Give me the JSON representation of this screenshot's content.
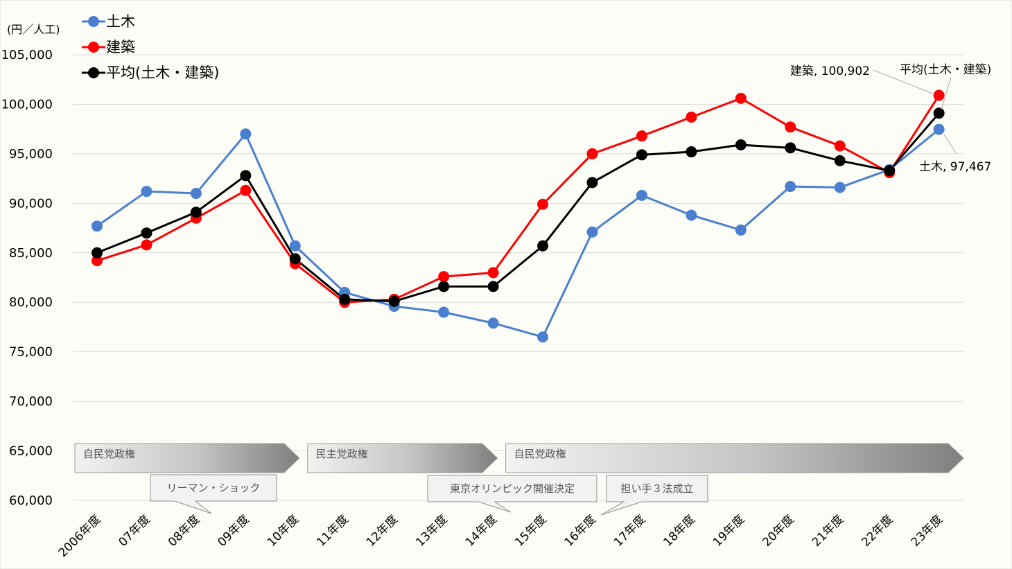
{
  "chart_data": {
    "type": "line",
    "unit_label": "(円／人工)",
    "categories": [
      "2006年度",
      "07年度",
      "08年度",
      "09年度",
      "10年度",
      "11年度",
      "12年度",
      "13年度",
      "14年度",
      "15年度",
      "16年度",
      "17年度",
      "18年度",
      "19年度",
      "20年度",
      "21年度",
      "22年度",
      "23年度"
    ],
    "ylim": [
      60000,
      105000
    ],
    "yticks": [
      60000,
      65000,
      70000,
      75000,
      80000,
      85000,
      90000,
      95000,
      100000,
      105000
    ],
    "ytick_labels": [
      "60,000",
      "65,000",
      "70,000",
      "75,000",
      "80,000",
      "85,000",
      "90,000",
      "95,000",
      "100,000",
      "105,000"
    ],
    "grid": true,
    "legend_position": "top-left",
    "series": [
      {
        "name": "土木",
        "color": "#4a7fcf",
        "values": [
          87700,
          91200,
          91000,
          97000,
          85700,
          81000,
          79600,
          79000,
          77900,
          76500,
          87100,
          90800,
          88800,
          87300,
          91700,
          91600,
          93400,
          97467
        ]
      },
      {
        "name": "建築",
        "color": "#ff0000",
        "values": [
          84200,
          85800,
          88500,
          91300,
          83900,
          80000,
          80300,
          82600,
          83000,
          89900,
          95000,
          96800,
          98700,
          100600,
          97700,
          95800,
          93100,
          100902
        ]
      },
      {
        "name": "平均(土木・建築)",
        "color": "#000000",
        "values": [
          85000,
          87000,
          89100,
          92800,
          84400,
          80300,
          80100,
          81600,
          81600,
          85700,
          92100,
          94900,
          95200,
          95900,
          95600,
          94300,
          93300,
          99100
        ]
      }
    ],
    "data_labels": [
      {
        "text": "建築, 100,902",
        "series": 1,
        "index": 17
      },
      {
        "text": "平均(土木・建築)",
        "series": 2,
        "index": 17
      },
      {
        "text": "土木, 97,467",
        "series": 0,
        "index": 17
      }
    ],
    "bands": [
      {
        "text": "自民党政権",
        "from": 0,
        "to": 4
      },
      {
        "text": "民主党政権",
        "from": 4,
        "to": 8
      },
      {
        "text": "自民党政権",
        "from": 8,
        "to": 17
      }
    ],
    "callouts": [
      {
        "text": "リーマン・ショック",
        "index": 2
      },
      {
        "text": "東京オリンピック開催決定",
        "index": 8
      },
      {
        "text": "担い手３法成立",
        "index": 10
      }
    ]
  }
}
